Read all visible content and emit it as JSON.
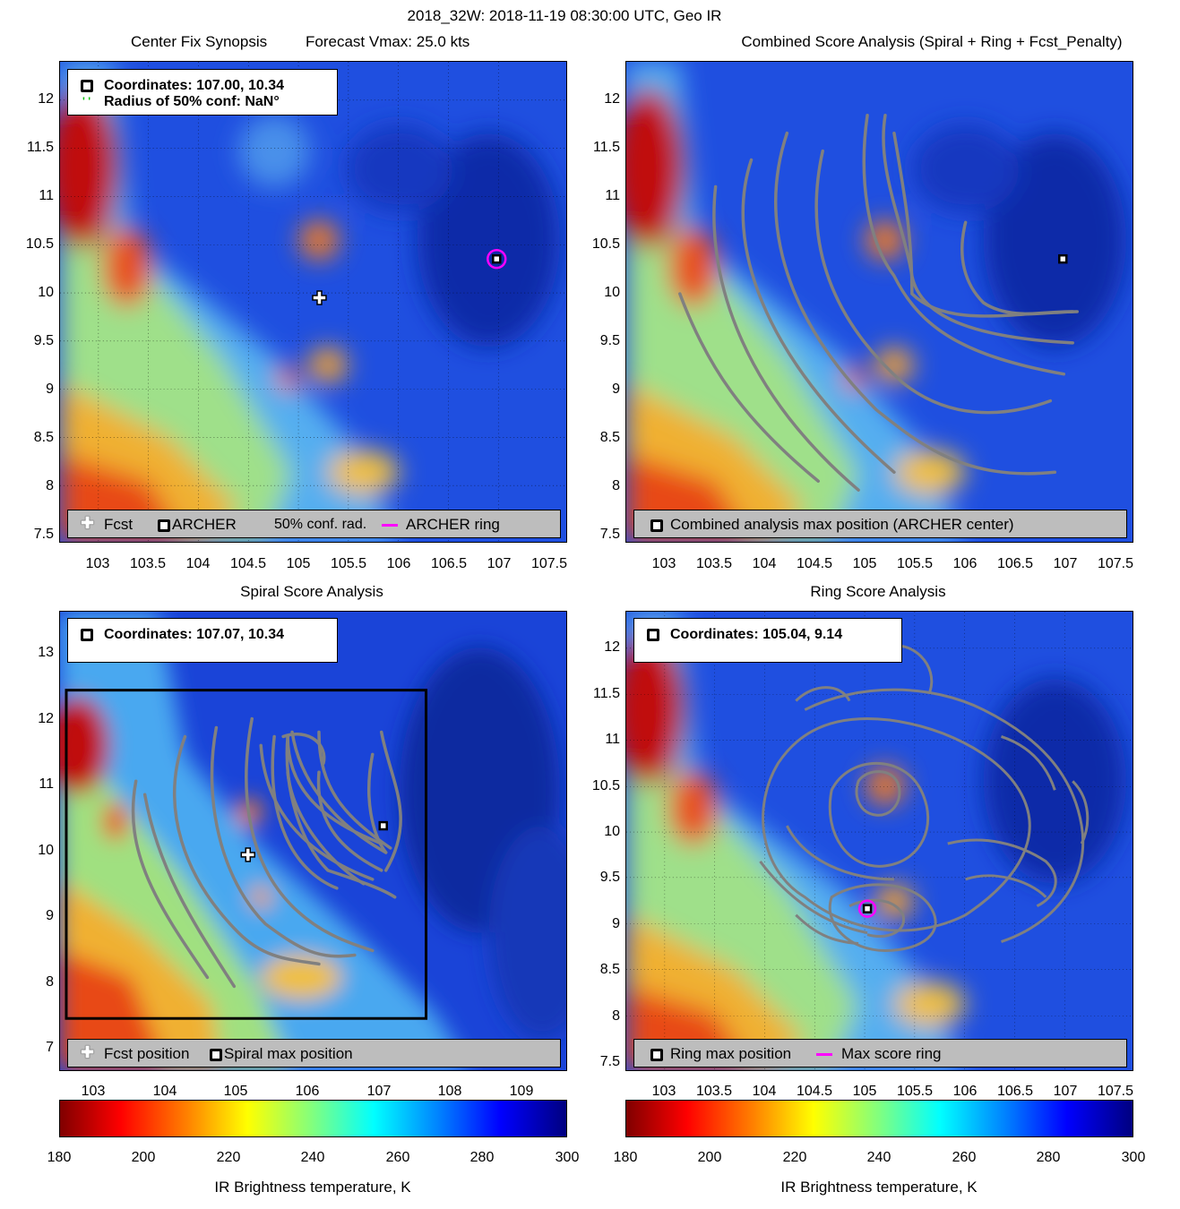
{
  "title": "2018_32W: 2018-11-19 08:30:00 UTC, Geo IR",
  "colors": {
    "ring": "#ff00ff",
    "contour": "#808080",
    "text": "#000000"
  },
  "panels": {
    "tl": {
      "title": "Center Fix Synopsis",
      "subtitle": "Forecast Vmax: 25.0 kts",
      "info": {
        "line1": "Coordinates: 107.00, 10.34",
        "line2": "Radius of 50% conf: NaN°"
      },
      "legend": {
        "fcst": "Fcst",
        "archer": "ARCHER",
        "conf": "50% conf. rad.",
        "ring": "ARCHER ring"
      },
      "yticks": [
        "12",
        "11.5",
        "11",
        "10.5",
        "10",
        "9.5",
        "9",
        "8.5",
        "8",
        "7.5"
      ],
      "xticks": [
        "103",
        "103.5",
        "104",
        "104.5",
        "105",
        "105.5",
        "106",
        "106.5",
        "107",
        "107.5"
      ]
    },
    "tr": {
      "title": "Combined Score Analysis (Spiral + Ring + Fcst_Penalty)",
      "legend": {
        "marker": "Combined analysis max position (ARCHER center)"
      },
      "yticks": [
        "12",
        "11.5",
        "11",
        "10.5",
        "10",
        "9.5",
        "9",
        "8.5",
        "8",
        "7.5"
      ],
      "xticks": [
        "103",
        "103.5",
        "104",
        "104.5",
        "105",
        "105.5",
        "106",
        "106.5",
        "107",
        "107.5"
      ]
    },
    "bl": {
      "title": "Spiral Score Analysis",
      "info": {
        "line1": "Coordinates: 107.07, 10.34"
      },
      "legend": {
        "fcst": "Fcst position",
        "max": "Spiral max position"
      },
      "yticks": [
        "13",
        "12",
        "11",
        "10",
        "9",
        "8",
        "7"
      ],
      "xticks": [
        "103",
        "104",
        "105",
        "106",
        "107",
        "108",
        "109"
      ]
    },
    "br": {
      "title": "Ring Score Analysis",
      "info": {
        "line1": "Coordinates: 105.04, 9.14"
      },
      "legend": {
        "marker": "Ring max position",
        "ring": "Max score ring"
      },
      "yticks": [
        "12",
        "11.5",
        "11",
        "10.5",
        "10",
        "9.5",
        "9",
        "8.5",
        "8",
        "7.5"
      ],
      "xticks": [
        "103",
        "103.5",
        "104",
        "104.5",
        "105",
        "105.5",
        "106",
        "106.5",
        "107",
        "107.5"
      ]
    }
  },
  "colorbar": {
    "label": "IR Brightness temperature, K",
    "ticks": [
      "180",
      "200",
      "220",
      "240",
      "260",
      "280",
      "300"
    ]
  },
  "chart_data": {
    "type": "heatmap",
    "title": "2018_32W: 2018-11-19 08:30:00 UTC, Geo IR",
    "colorbar_range": [
      180,
      300
    ],
    "archer_center": [
      107.0,
      10.34
    ],
    "spiral_max": [
      107.07,
      10.34
    ],
    "ring_max": [
      105.04,
      9.14
    ],
    "forecast_position": [
      105.15,
      9.89
    ],
    "forecast_vmax_kts": 25.0
  }
}
